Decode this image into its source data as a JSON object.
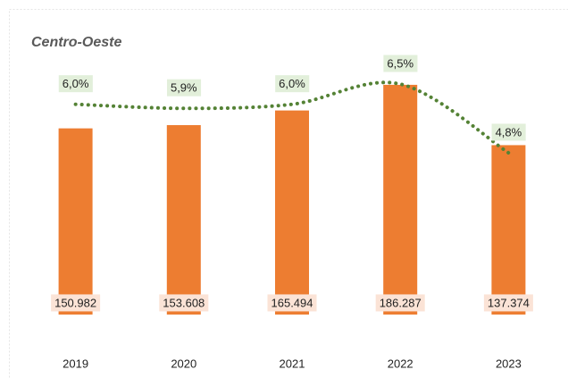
{
  "chart_data": {
    "type": "bar",
    "title": "Centro-Oeste",
    "categories": [
      "2019",
      "2020",
      "2021",
      "2022",
      "2023"
    ],
    "series": [
      {
        "type": "bar",
        "color": "#ed7d31",
        "values": [
          150982,
          153608,
          165494,
          186287,
          137374
        ],
        "value_labels": [
          "150.982",
          "153.608",
          "165.494",
          "186.287",
          "137.374"
        ]
      },
      {
        "type": "line",
        "axis": "y2",
        "color": "#548235",
        "values": [
          6.0,
          5.9,
          6.0,
          6.5,
          4.8
        ],
        "value_labels": [
          "6,0%",
          "5,9%",
          "6,0%",
          "6,5%",
          "4,8%"
        ]
      }
    ],
    "ylim": [
      0,
      200000
    ],
    "y2lim": [
      0.8,
      6.9
    ]
  }
}
